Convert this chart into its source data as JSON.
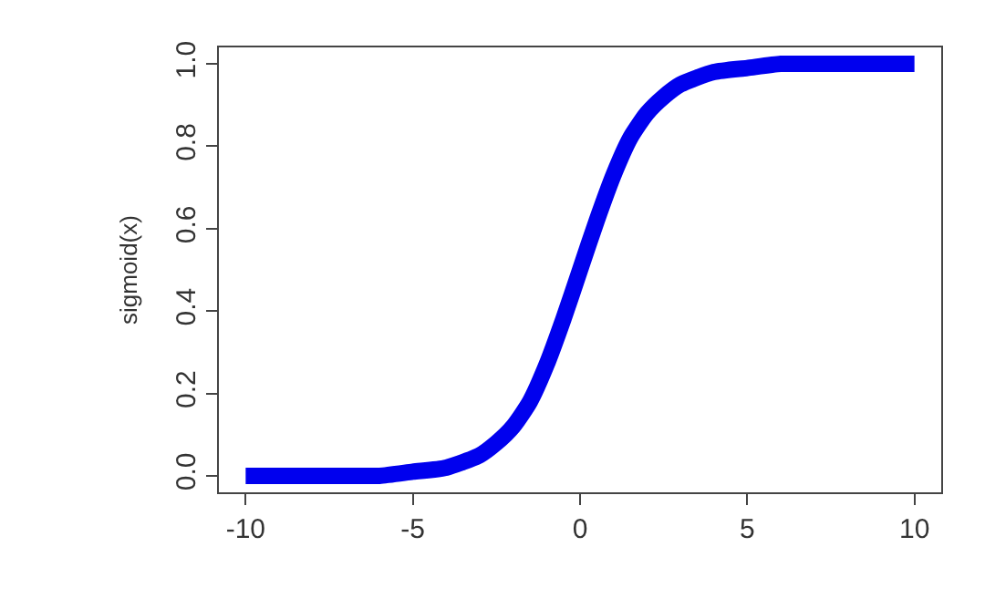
{
  "chart_data": {
    "type": "line",
    "ylabel": "sigmoid(x)",
    "x": [
      -10,
      -9,
      -8,
      -7,
      -6,
      -5,
      -4,
      -3,
      -2.5,
      -2,
      -1.5,
      -1,
      -0.5,
      0,
      0.5,
      1,
      1.5,
      2,
      2.5,
      3,
      4,
      5,
      6,
      7,
      8,
      9,
      10
    ],
    "series": [
      {
        "color": "#0000ee",
        "values": [
          0.0,
          0.0,
          0.0,
          0.0,
          0.0,
          0.01,
          0.02,
          0.05,
          0.08,
          0.12,
          0.18,
          0.27,
          0.38,
          0.5,
          0.62,
          0.73,
          0.82,
          0.88,
          0.92,
          0.95,
          0.98,
          0.99,
          1.0,
          1.0,
          1.0,
          1.0,
          1.0
        ]
      }
    ],
    "xlim": [
      -10.8,
      10.8
    ],
    "ylim": [
      -0.04,
      1.04
    ],
    "xticks": [
      -10,
      -5,
      0,
      5,
      10
    ],
    "yticks": [
      {
        "value": 0,
        "label": "0.0"
      },
      {
        "value": 0.2,
        "label": "0.2"
      },
      {
        "value": 0.4,
        "label": "0.4"
      },
      {
        "value": 0.6,
        "label": "0.6"
      },
      {
        "value": 0.8,
        "label": "0.8"
      },
      {
        "value": 1,
        "label": "1.0"
      }
    ],
    "line_style": "solid"
  }
}
